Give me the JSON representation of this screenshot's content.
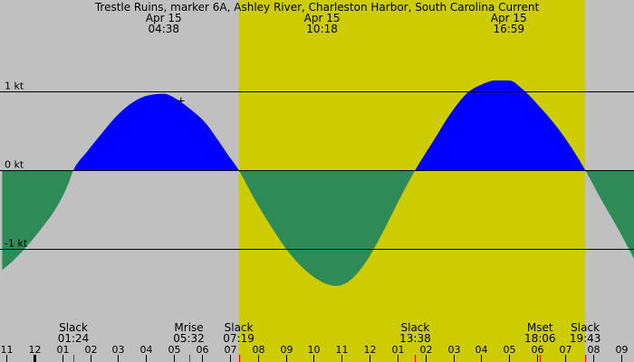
{
  "chart_data": {
    "type": "area",
    "title": "Trestle Ruins, marker 6A, Ashley River, Charleston Harbor, South Carolina Current",
    "unit": "kt",
    "y_ticks": [
      {
        "value": 1,
        "label": "1 kt"
      },
      {
        "value": 0,
        "label": "0 kt"
      },
      {
        "value": -1,
        "label": "-1 kt"
      }
    ],
    "ylim": [
      -1.9,
      2.2
    ],
    "xlim": [
      10.85,
      33.5
    ],
    "x_tick_hours": [
      11,
      12,
      13,
      14,
      15,
      16,
      17,
      18,
      19,
      20,
      21,
      22,
      23,
      24,
      25,
      26,
      27,
      28,
      29,
      30,
      31,
      32,
      33
    ],
    "x_tick_labels": [
      "11",
      "12",
      "01",
      "02",
      "03",
      "04",
      "05",
      "06",
      "07",
      "08",
      "09",
      "10",
      "11",
      "12",
      "01",
      "02",
      "03",
      "04",
      "05",
      "06",
      "07",
      "08",
      "09"
    ],
    "midnight_hour": 12,
    "daylight": {
      "start": 19.3167,
      "end": 31.7167
    },
    "slack_hours": [
      13.4,
      19.3167,
      25.6333,
      31.7167
    ],
    "series": [
      {
        "kind": "flood",
        "color": "#0000ff"
      },
      {
        "kind": "ebb",
        "color": "#2e8b57"
      }
    ],
    "points": [
      {
        "x": 10.85,
        "y": -1.27
      },
      {
        "x": 11.3,
        "y": -1.13
      },
      {
        "x": 11.8,
        "y": -0.94
      },
      {
        "x": 12.3,
        "y": -0.72
      },
      {
        "x": 12.8,
        "y": -0.47
      },
      {
        "x": 13.2,
        "y": -0.19
      },
      {
        "x": 13.4,
        "y": 0
      },
      {
        "x": 13.9,
        "y": 0.24
      },
      {
        "x": 14.4,
        "y": 0.46
      },
      {
        "x": 14.9,
        "y": 0.67
      },
      {
        "x": 15.4,
        "y": 0.83
      },
      {
        "x": 15.9,
        "y": 0.93
      },
      {
        "x": 16.633,
        "y": 0.97
      },
      {
        "x": 17.1,
        "y": 0.9
      },
      {
        "x": 17.6,
        "y": 0.77
      },
      {
        "x": 18.1,
        "y": 0.61
      },
      {
        "x": 18.5,
        "y": 0.42
      },
      {
        "x": 18.9,
        "y": 0.21
      },
      {
        "x": 19.3167,
        "y": 0
      },
      {
        "x": 19.9,
        "y": -0.38
      },
      {
        "x": 20.5,
        "y": -0.73
      },
      {
        "x": 21.1,
        "y": -1.04
      },
      {
        "x": 21.7,
        "y": -1.27
      },
      {
        "x": 22.3,
        "y": -1.42
      },
      {
        "x": 22.8,
        "y": -1.47
      },
      {
        "x": 23.3,
        "y": -1.4
      },
      {
        "x": 23.9,
        "y": -1.15
      },
      {
        "x": 24.5,
        "y": -0.77
      },
      {
        "x": 25.1,
        "y": -0.35
      },
      {
        "x": 25.6333,
        "y": 0
      },
      {
        "x": 26.3,
        "y": 0.38
      },
      {
        "x": 26.9,
        "y": 0.72
      },
      {
        "x": 27.5,
        "y": 0.98
      },
      {
        "x": 28.1,
        "y": 1.1
      },
      {
        "x": 28.5,
        "y": 1.14
      },
      {
        "x": 28.983,
        "y": 1.14
      },
      {
        "x": 29.5,
        "y": 1.02
      },
      {
        "x": 30.1,
        "y": 0.8
      },
      {
        "x": 30.7,
        "y": 0.55
      },
      {
        "x": 31.2,
        "y": 0.3
      },
      {
        "x": 31.7167,
        "y": 0
      },
      {
        "x": 32.3,
        "y": -0.38
      },
      {
        "x": 32.9,
        "y": -0.75
      },
      {
        "x": 33.5,
        "y": -1.15
      }
    ],
    "top_labels": [
      {
        "hour": 16.633,
        "date": "Apr 15",
        "time": "04:38"
      },
      {
        "hour": 22.3,
        "date": "Apr 15",
        "time": "10:18"
      },
      {
        "hour": 28.983,
        "date": "Apr 15",
        "time": "16:59"
      }
    ],
    "events": [
      {
        "hour": 13.4,
        "name": "Slack",
        "time": "01:24"
      },
      {
        "hour": 17.533,
        "name": "Mrise",
        "time": "05:32"
      },
      {
        "hour": 19.3167,
        "name": "Slack",
        "time": "07:19"
      },
      {
        "hour": 25.6333,
        "name": "Slack",
        "time": "13:38"
      },
      {
        "hour": 30.1,
        "name": "Mset",
        "time": "18:06"
      },
      {
        "hour": 31.7167,
        "name": "Slack",
        "time": "19:43"
      }
    ],
    "marker": {
      "hour": 17.25,
      "value": 0.9,
      "symbol": "+"
    },
    "colors": {
      "night": "#c0c0c0",
      "day": "#cccc00",
      "flood": "#0000ff",
      "ebb": "#2e8b57",
      "tick": "#000000",
      "event_tick": "#ff0000"
    }
  }
}
